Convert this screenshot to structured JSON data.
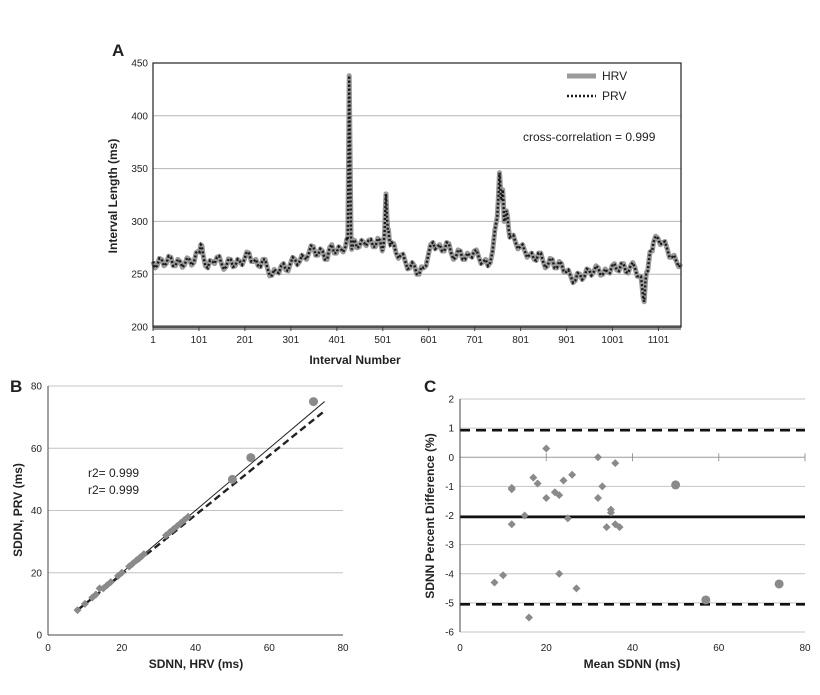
{
  "chart_data": [
    {
      "panel": "A",
      "type": "line",
      "xlabel": "Interval Number",
      "ylabel": "Interval Length (ms)",
      "xlim": [
        1,
        1150
      ],
      "ylim": [
        200,
        450
      ],
      "xticks": [
        1,
        101,
        201,
        301,
        401,
        501,
        601,
        701,
        801,
        901,
        1001,
        1101
      ],
      "yticks": [
        200,
        250,
        300,
        350,
        400,
        450
      ],
      "grid": "horizontal",
      "legend": "top-right",
      "annotation": "cross-correlation = 0.999",
      "series": [
        {
          "name": "HRV",
          "color": "#9a9a9a",
          "style": "solid"
        },
        {
          "name": "PRV",
          "color": "#1a1a1a",
          "style": "dotted"
        }
      ],
      "x": [
        1,
        10,
        20,
        30,
        40,
        50,
        60,
        70,
        80,
        90,
        100,
        105,
        110,
        120,
        130,
        140,
        150,
        160,
        170,
        180,
        190,
        200,
        210,
        220,
        230,
        240,
        250,
        260,
        270,
        280,
        290,
        300,
        310,
        320,
        330,
        340,
        350,
        360,
        370,
        380,
        390,
        400,
        410,
        420,
        425,
        428,
        432,
        435,
        440,
        450,
        460,
        470,
        480,
        490,
        500,
        505,
        508,
        512,
        515,
        520,
        530,
        540,
        550,
        560,
        570,
        580,
        590,
        600,
        610,
        620,
        630,
        640,
        650,
        660,
        670,
        680,
        690,
        700,
        710,
        720,
        730,
        740,
        750,
        755,
        758,
        762,
        765,
        770,
        775,
        780,
        790,
        800,
        810,
        820,
        830,
        840,
        850,
        860,
        870,
        880,
        890,
        900,
        910,
        920,
        930,
        940,
        950,
        960,
        970,
        980,
        990,
        1000,
        1010,
        1020,
        1030,
        1040,
        1050,
        1060,
        1065,
        1070,
        1075,
        1080,
        1085,
        1090,
        1100,
        1110,
        1120,
        1130,
        1140,
        1150
      ],
      "values": [
        262,
        258,
        264,
        260,
        266,
        258,
        262,
        259,
        264,
        261,
        272,
        278,
        268,
        256,
        262,
        266,
        260,
        257,
        264,
        258,
        262,
        264,
        270,
        262,
        258,
        264,
        256,
        249,
        252,
        258,
        254,
        260,
        264,
        262,
        266,
        270,
        276,
        268,
        272,
        264,
        278,
        270,
        274,
        276,
        282,
        438,
        280,
        275,
        282,
        276,
        280,
        282,
        276,
        284,
        272,
        290,
        326,
        292,
        284,
        280,
        270,
        268,
        262,
        256,
        258,
        250,
        256,
        268,
        280,
        276,
        272,
        280,
        270,
        266,
        272,
        264,
        268,
        272,
        266,
        262,
        258,
        272,
        304,
        346,
        320,
        330,
        300,
        310,
        292,
        286,
        280,
        276,
        272,
        268,
        264,
        270,
        262,
        258,
        264,
        256,
        260,
        252,
        248,
        244,
        250,
        248,
        254,
        252,
        256,
        250,
        252,
        258,
        254,
        260,
        252,
        258,
        256,
        248,
        240,
        224,
        252,
        262,
        272,
        280,
        284,
        280,
        274,
        266,
        262,
        260
      ]
    },
    {
      "panel": "B",
      "type": "scatter",
      "xlabel": "SDNN, HRV (ms)",
      "ylabel": "SDDN, PRV (ms)",
      "xlim": [
        0,
        80
      ],
      "ylim": [
        0,
        80
      ],
      "xticks": [
        0,
        20,
        40,
        60,
        80
      ],
      "yticks": [
        0,
        20,
        40,
        60,
        80
      ],
      "grid": "horizontal",
      "annotations": [
        "r2= 0.999",
        "r2= 0.999"
      ],
      "points": [
        {
          "x": 8,
          "y": 8,
          "shape": "diamond"
        },
        {
          "x": 10,
          "y": 10,
          "shape": "diamond"
        },
        {
          "x": 12,
          "y": 12,
          "shape": "diamond"
        },
        {
          "x": 13,
          "y": 13,
          "shape": "diamond"
        },
        {
          "x": 14,
          "y": 15,
          "shape": "diamond"
        },
        {
          "x": 15,
          "y": 15,
          "shape": "diamond"
        },
        {
          "x": 16,
          "y": 16,
          "shape": "diamond"
        },
        {
          "x": 17,
          "y": 17,
          "shape": "diamond"
        },
        {
          "x": 19,
          "y": 19,
          "shape": "diamond"
        },
        {
          "x": 20,
          "y": 20,
          "shape": "diamond"
        },
        {
          "x": 22,
          "y": 22,
          "shape": "diamond"
        },
        {
          "x": 23,
          "y": 23,
          "shape": "diamond"
        },
        {
          "x": 24,
          "y": 24,
          "shape": "diamond"
        },
        {
          "x": 25,
          "y": 25,
          "shape": "diamond"
        },
        {
          "x": 26,
          "y": 26,
          "shape": "diamond"
        },
        {
          "x": 32,
          "y": 32,
          "shape": "diamond"
        },
        {
          "x": 33,
          "y": 33,
          "shape": "diamond"
        },
        {
          "x": 34,
          "y": 34,
          "shape": "diamond"
        },
        {
          "x": 35,
          "y": 35,
          "shape": "diamond"
        },
        {
          "x": 36,
          "y": 36,
          "shape": "diamond"
        },
        {
          "x": 37,
          "y": 37,
          "shape": "diamond"
        },
        {
          "x": 38,
          "y": 38,
          "shape": "diamond"
        },
        {
          "x": 50,
          "y": 50,
          "shape": "circle"
        },
        {
          "x": 55,
          "y": 57,
          "shape": "circle"
        },
        {
          "x": 72,
          "y": 75,
          "shape": "circle"
        }
      ],
      "lines": [
        {
          "style": "solid",
          "x": [
            8,
            75
          ],
          "y": [
            8,
            75
          ]
        },
        {
          "style": "dashed",
          "x": [
            8,
            75
          ],
          "y": [
            8,
            72
          ]
        }
      ]
    },
    {
      "panel": "C",
      "type": "scatter",
      "xlabel": "Mean SDNN (ms)",
      "ylabel": "SDNN Percent Difference (%)",
      "xlim": [
        0,
        80
      ],
      "ylim": [
        -6,
        2
      ],
      "xticks": [
        0,
        20,
        40,
        60,
        80
      ],
      "yticks": [
        -6,
        -5,
        -4,
        -3,
        -2,
        -1,
        0,
        1,
        2
      ],
      "grid": "horizontal",
      "reference_lines": [
        {
          "y": 0.93,
          "style": "dashed"
        },
        {
          "y": -2.05,
          "style": "solid"
        },
        {
          "y": -5.05,
          "style": "dashed"
        }
      ],
      "points": [
        {
          "x": 8,
          "y": -4.3,
          "shape": "diamond"
        },
        {
          "x": 10,
          "y": -4.05,
          "shape": "diamond"
        },
        {
          "x": 12,
          "y": -1.1,
          "shape": "diamond"
        },
        {
          "x": 12,
          "y": -1.05,
          "shape": "diamond"
        },
        {
          "x": 12,
          "y": -2.3,
          "shape": "diamond"
        },
        {
          "x": 15,
          "y": -2.0,
          "shape": "diamond"
        },
        {
          "x": 16,
          "y": -5.5,
          "shape": "diamond"
        },
        {
          "x": 17,
          "y": -0.7,
          "shape": "diamond"
        },
        {
          "x": 18,
          "y": -0.9,
          "shape": "diamond"
        },
        {
          "x": 20,
          "y": 0.3,
          "shape": "diamond"
        },
        {
          "x": 20,
          "y": -1.4,
          "shape": "diamond"
        },
        {
          "x": 22,
          "y": -1.2,
          "shape": "diamond"
        },
        {
          "x": 23,
          "y": -1.3,
          "shape": "diamond"
        },
        {
          "x": 23,
          "y": -4.0,
          "shape": "diamond"
        },
        {
          "x": 24,
          "y": -0.8,
          "shape": "diamond"
        },
        {
          "x": 25,
          "y": -2.1,
          "shape": "diamond"
        },
        {
          "x": 26,
          "y": -0.6,
          "shape": "diamond"
        },
        {
          "x": 27,
          "y": -4.5,
          "shape": "diamond"
        },
        {
          "x": 32,
          "y": 0.0,
          "shape": "diamond"
        },
        {
          "x": 32,
          "y": -1.4,
          "shape": "diamond"
        },
        {
          "x": 33,
          "y": -1.0,
          "shape": "diamond"
        },
        {
          "x": 34,
          "y": -2.4,
          "shape": "diamond"
        },
        {
          "x": 35,
          "y": -1.9,
          "shape": "diamond"
        },
        {
          "x": 35,
          "y": -1.8,
          "shape": "diamond"
        },
        {
          "x": 36,
          "y": -0.2,
          "shape": "diamond"
        },
        {
          "x": 36,
          "y": -2.3,
          "shape": "diamond"
        },
        {
          "x": 37,
          "y": -2.4,
          "shape": "diamond"
        },
        {
          "x": 50,
          "y": -0.95,
          "shape": "circle"
        },
        {
          "x": 57,
          "y": -4.9,
          "shape": "circle"
        },
        {
          "x": 74,
          "y": -4.35,
          "shape": "circle"
        }
      ]
    }
  ]
}
